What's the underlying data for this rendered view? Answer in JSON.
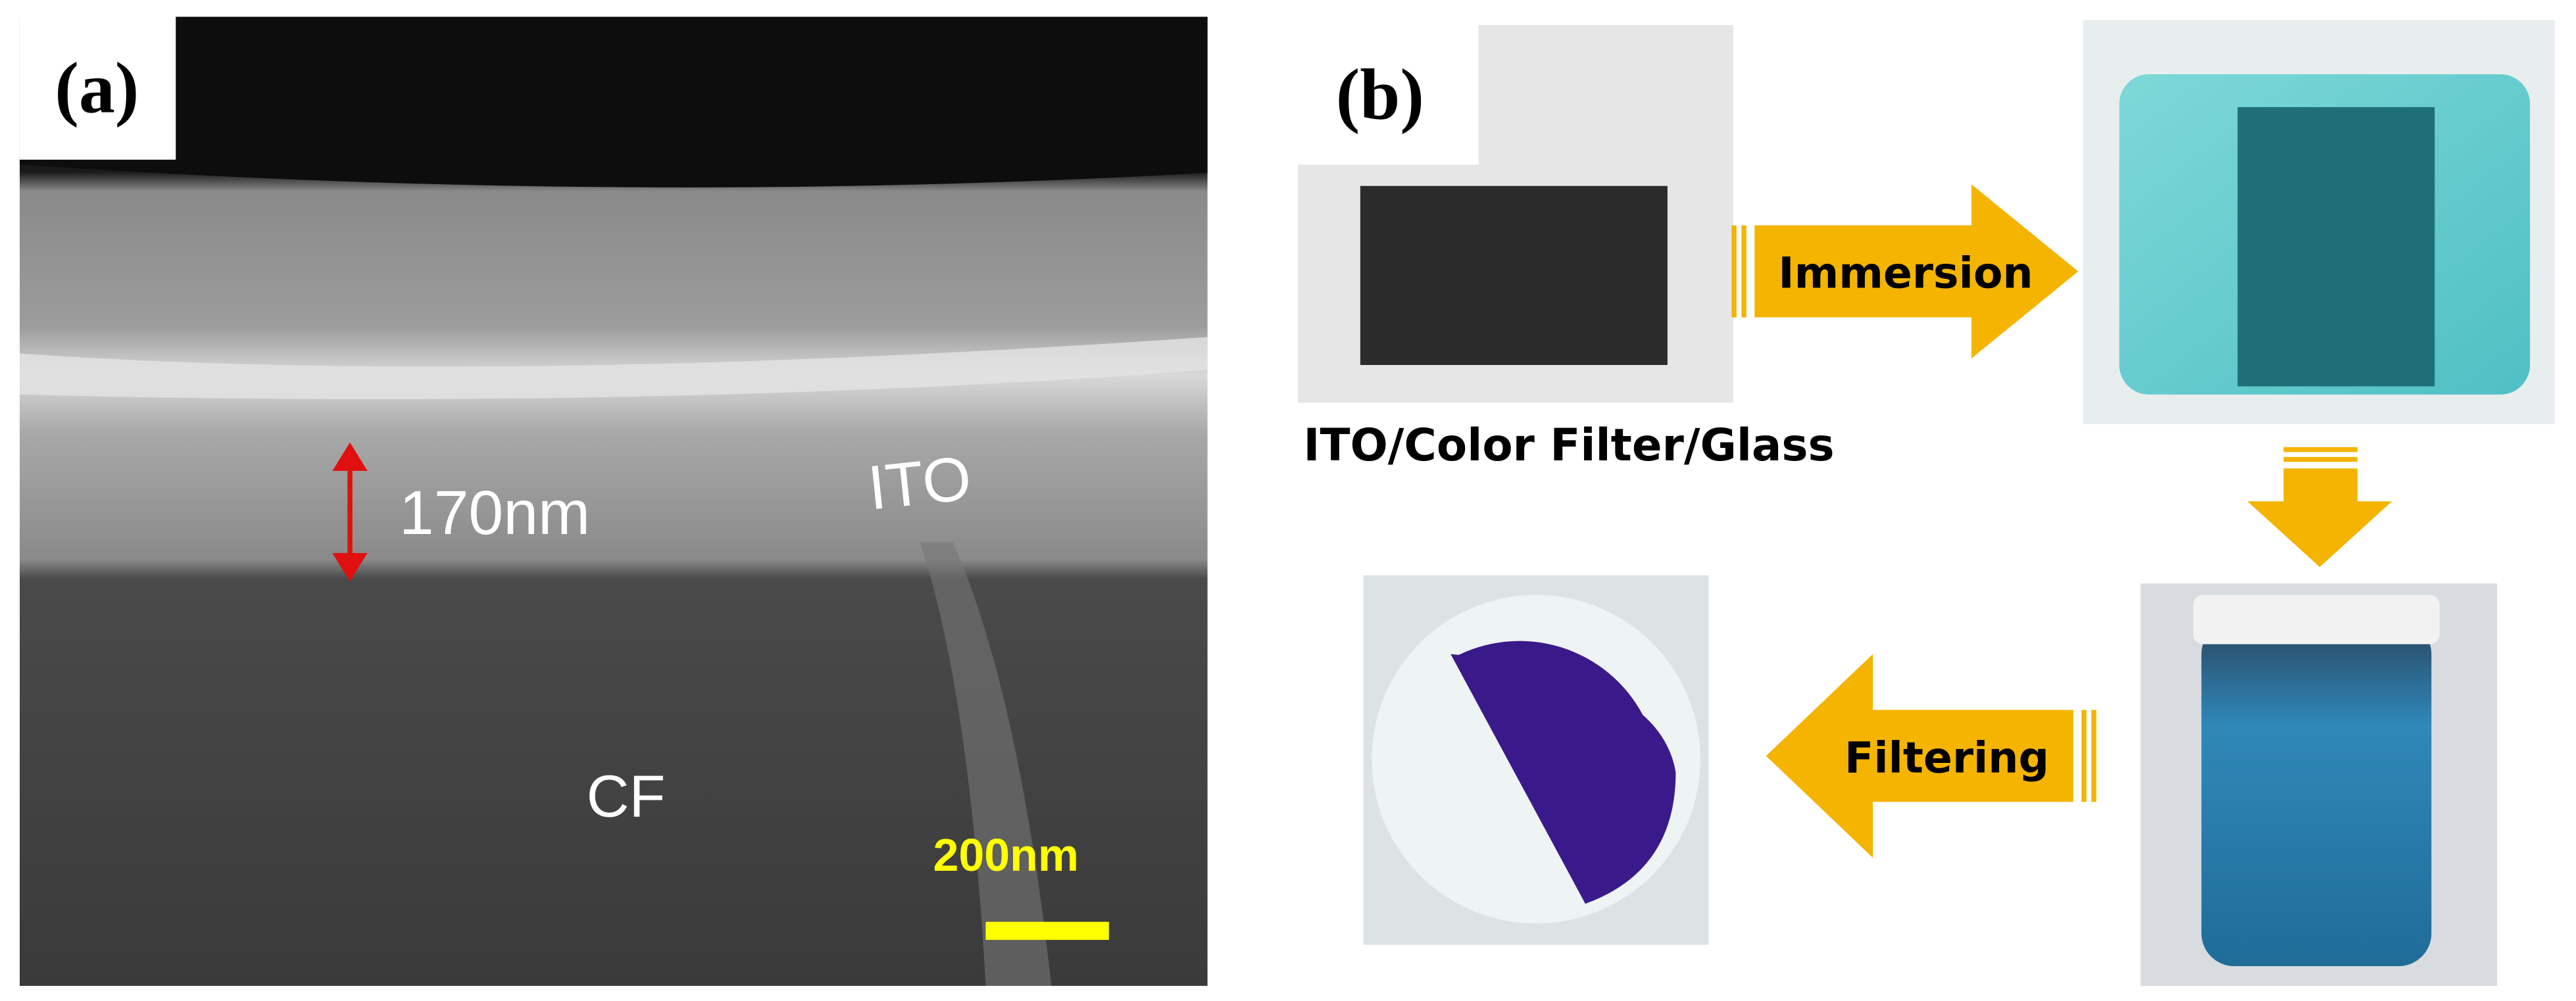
{
  "panel_a": {
    "label": "(a)",
    "thickness": "170nm",
    "layer_top": "ITO",
    "layer_bottom": "CF",
    "scale_bar": "200nm"
  },
  "panel_b": {
    "label": "(b)",
    "sample_caption": "ITO/Color Filter/Glass",
    "step_1": "Immersion",
    "step_2": "Filtering"
  }
}
